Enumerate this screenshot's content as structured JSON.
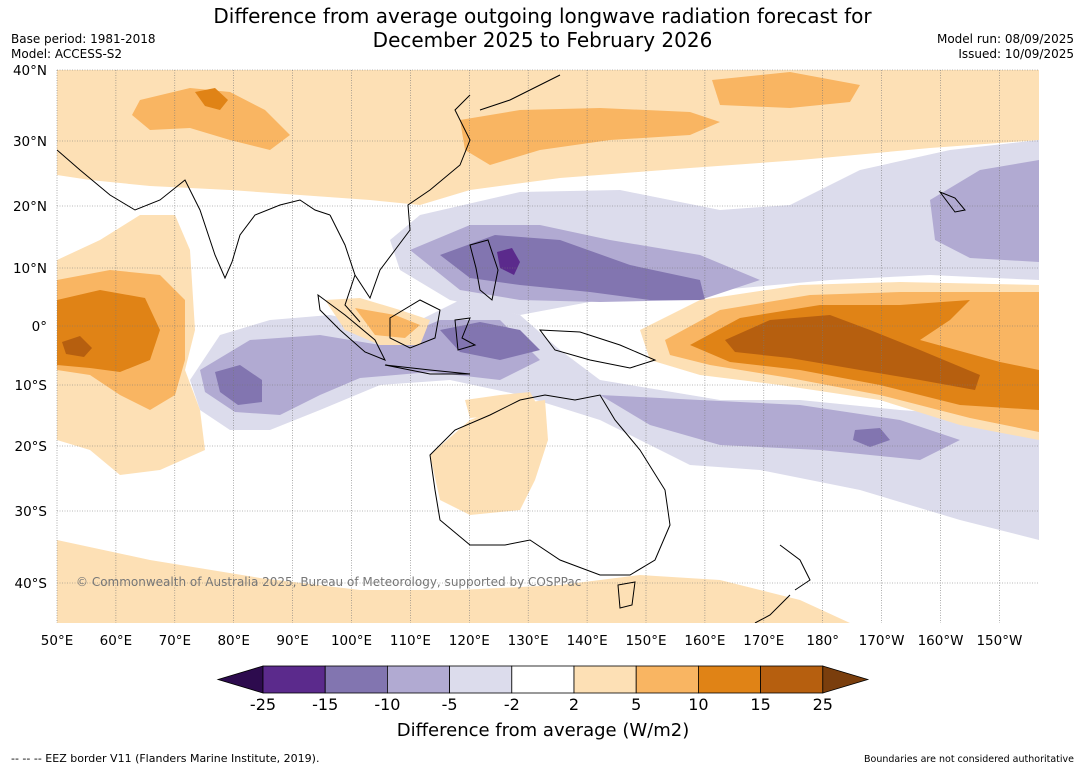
{
  "header": {
    "title_line1": "Difference from average outgoing longwave radiation forecast for",
    "title_line2": "December 2025 to February 2026",
    "base_period": "Base period: 1981-2018",
    "model": "Model: ACCESS-S2",
    "model_run": "Model run: 08/09/2025",
    "issued": "Issued: 10/09/2025"
  },
  "map": {
    "copyright": "© Commonwealth of Australia 2025, Bureau of Meteorology, supported by COSPPac",
    "lat_labels": [
      "40°N",
      "30°N",
      "20°N",
      "10°N",
      "0°",
      "10°S",
      "20°S",
      "30°S",
      "40°S"
    ],
    "lon_labels": [
      "50°E",
      "60°E",
      "70°E",
      "80°E",
      "90°E",
      "100°E",
      "110°E",
      "120°E",
      "130°E",
      "140°E",
      "150°E",
      "160°E",
      "170°E",
      "180°",
      "170°W",
      "160°W",
      "150°W"
    ]
  },
  "colorbar": {
    "ticks": [
      "-25",
      "-15",
      "-10",
      "-5",
      "-2",
      "2",
      "5",
      "10",
      "15",
      "25"
    ],
    "colors": [
      "#5b2a8c",
      "#8275b0",
      "#b1aad2",
      "#dcdcec",
      "#ffffff",
      "#fde0b5",
      "#f9b562",
      "#e08316",
      "#b65f0f"
    ],
    "under_color": "#2d0b4e",
    "over_color": "#7a3e0d",
    "label": "Difference from average (W/m2)"
  },
  "footer": {
    "eez_note": "--  --  -- EEZ border V11 (Flanders Marine Institute, 2019).",
    "boundaries_note": "Boundaries are not considered authoritative"
  }
}
